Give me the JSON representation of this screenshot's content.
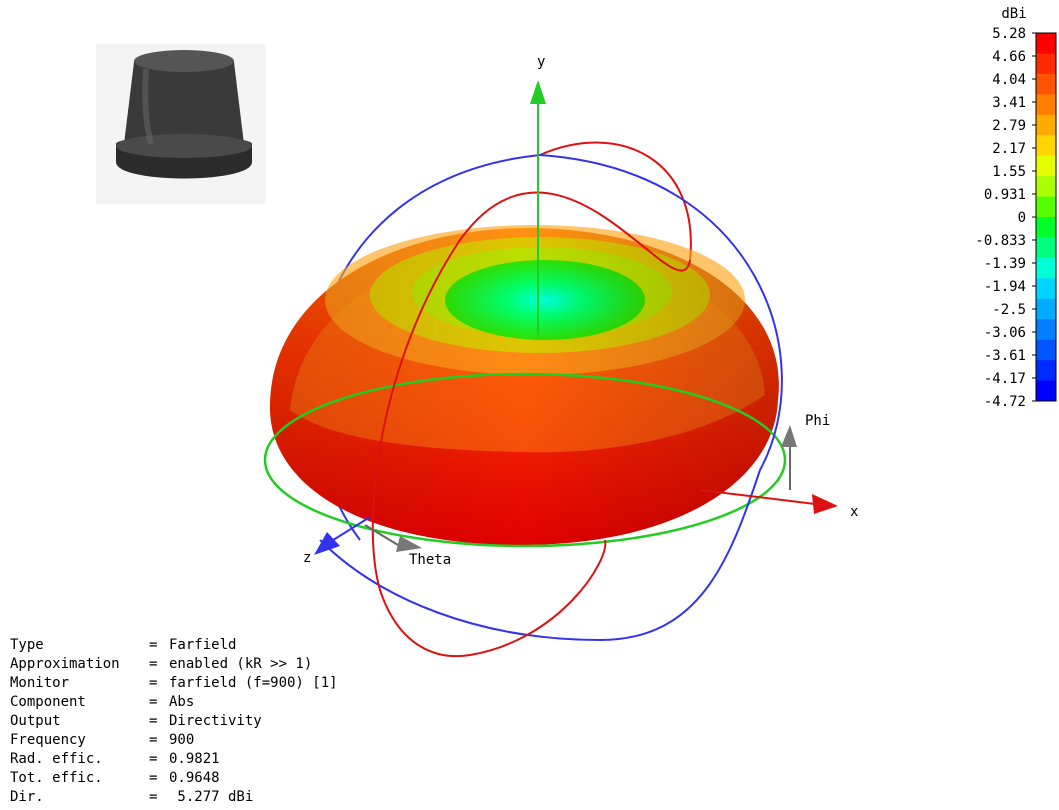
{
  "legend": {
    "unit": "dBi",
    "ticks": [
      "5.28",
      "4.66",
      "4.04",
      "3.41",
      "2.79",
      "2.17",
      "1.55",
      "0.931",
      "0",
      "-0.833",
      "-1.39",
      "-1.94",
      "-2.5",
      "-3.06",
      "-3.61",
      "-4.17",
      "-4.72"
    ],
    "colors": [
      "#ff0000",
      "#ff2a00",
      "#ff5500",
      "#ff7f00",
      "#ffaa00",
      "#ffd400",
      "#e6ff00",
      "#aaff00",
      "#55ff00",
      "#00ff2a",
      "#00ff80",
      "#00ffd4",
      "#00d4ff",
      "#00aaff",
      "#0080ff",
      "#0055ff",
      "#002aff",
      "#0000ff"
    ]
  },
  "axes": {
    "x": "x",
    "y": "y",
    "z": "z",
    "theta": "Theta",
    "phi": "Phi"
  },
  "info": [
    {
      "key": "Type",
      "value": "Farfield"
    },
    {
      "key": "Approximation",
      "value": "enabled (kR >> 1)"
    },
    {
      "key": "Monitor",
      "value": "farfield (f=900) [1]"
    },
    {
      "key": "Component",
      "value": "Abs"
    },
    {
      "key": "Output",
      "value": "Directivity"
    },
    {
      "key": "Frequency",
      "value": "900"
    },
    {
      "key": "Rad. effic.",
      "value": "0.9821"
    },
    {
      "key": "Tot. effic.",
      "value": "0.9648"
    },
    {
      "key": "Dir.",
      "value": " 5.277 dBi"
    }
  ]
}
